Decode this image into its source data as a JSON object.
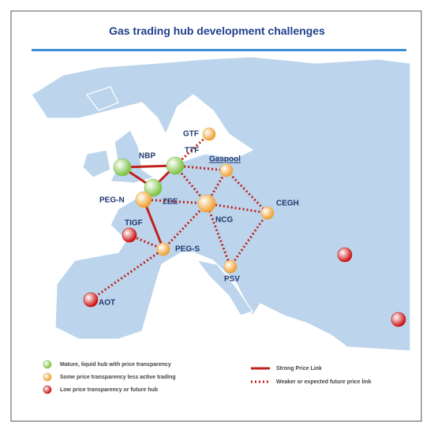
{
  "header": {
    "title": "Gas trading hub development challenges"
  },
  "nodes": [
    {
      "label": "GTF",
      "color": "#f0a030"
    },
    {
      "label": "NBP",
      "color": "#7cc243"
    },
    {
      "label": "TTF",
      "color": "#7cc243"
    },
    {
      "label": "Gaspool",
      "color": "#f0a030"
    },
    {
      "label": "ZEE",
      "color": "#7cc243"
    },
    {
      "label": "PEG-N",
      "color": "#f0a030"
    },
    {
      "label": "NCG",
      "color": "#f0a030"
    },
    {
      "label": "CEGH",
      "color": "#f0a030"
    },
    {
      "label": "TIGF",
      "color": "#cc1010"
    },
    {
      "label": "PEG-S",
      "color": "#f0a030"
    },
    {
      "label": "PSV",
      "color": "#f0a030"
    },
    {
      "label": "AOT",
      "color": "#cc1010"
    },
    {
      "label": null,
      "color": "#cc1010"
    },
    {
      "label": null,
      "color": "#cc1010"
    }
  ],
  "legend": {
    "hubs": [
      {
        "label": "Mature, liquid hub with price transparency",
        "color": "#7cc243"
      },
      {
        "label": "Some price transparency less active trading",
        "color": "#f0a030"
      },
      {
        "label": "Low price transparency or future hub",
        "color": "#cc1010"
      }
    ],
    "links": [
      {
        "label": "Strong Price Link"
      },
      {
        "label": "Weaker or expected future price link"
      }
    ]
  }
}
